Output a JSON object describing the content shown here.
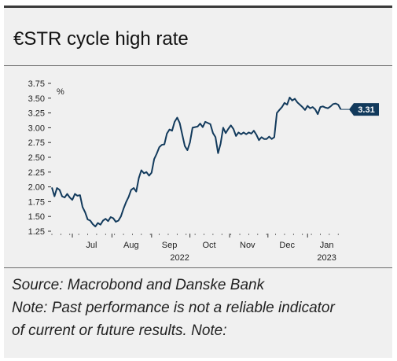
{
  "title": "€STR cycle high rate",
  "source": "Source: Macrobond and Danske Bank",
  "note_lines": [
    "Note: Past performance is not a reliable indicator",
    "of current or future results. Note:"
  ],
  "colors": {
    "line": "#123a5c",
    "label_bg": "#123a5c",
    "label_text": "#ffffff",
    "background": "#f0f0f0"
  },
  "chart_data": {
    "type": "line",
    "title": "",
    "ylabel": "%",
    "ylim": [
      1.25,
      3.75
    ],
    "yticks": [
      1.25,
      1.5,
      1.75,
      2.0,
      2.25,
      2.5,
      2.75,
      3.0,
      3.25,
      3.5,
      3.75
    ],
    "ytick_labels": [
      "1.25",
      "1.50",
      "1.75",
      "2.00",
      "2.25",
      "2.50",
      "2.75",
      "3.00",
      "3.25",
      "3.50",
      "3.75"
    ],
    "xlim": [
      "2022-06-15",
      "2023-01-31"
    ],
    "month_labels": [
      {
        "label": "Jul",
        "date": "2022-07-16"
      },
      {
        "label": "Aug",
        "date": "2022-08-16"
      },
      {
        "label": "Sep",
        "date": "2022-09-15"
      },
      {
        "label": "Oct",
        "date": "2022-10-16"
      },
      {
        "label": "Nov",
        "date": "2022-11-15"
      },
      {
        "label": "Dec",
        "date": "2022-12-16"
      },
      {
        "label": "Jan",
        "date": "2023-01-16"
      }
    ],
    "year_labels": [
      {
        "label": "2022",
        "date": "2022-09-23"
      },
      {
        "label": "2023",
        "date": "2023-01-16"
      }
    ],
    "grid": false,
    "legend": "none",
    "end_label": "3.31",
    "series": [
      {
        "values": [
          [
            "2022-06-15",
            1.99
          ],
          [
            "2022-06-17",
            1.84
          ],
          [
            "2022-06-19",
            1.98
          ],
          [
            "2022-06-21",
            1.95
          ],
          [
            "2022-06-23",
            1.84
          ],
          [
            "2022-06-25",
            1.82
          ],
          [
            "2022-06-27",
            1.88
          ],
          [
            "2022-06-29",
            1.82
          ],
          [
            "2022-07-01",
            1.78
          ],
          [
            "2022-07-03",
            1.88
          ],
          [
            "2022-07-05",
            1.85
          ],
          [
            "2022-07-07",
            1.86
          ],
          [
            "2022-07-09",
            1.66
          ],
          [
            "2022-07-11",
            1.57
          ],
          [
            "2022-07-13",
            1.45
          ],
          [
            "2022-07-15",
            1.43
          ],
          [
            "2022-07-17",
            1.37
          ],
          [
            "2022-07-19",
            1.33
          ],
          [
            "2022-07-21",
            1.39
          ],
          [
            "2022-07-23",
            1.36
          ],
          [
            "2022-07-25",
            1.43
          ],
          [
            "2022-07-27",
            1.46
          ],
          [
            "2022-07-29",
            1.42
          ],
          [
            "2022-07-31",
            1.49
          ],
          [
            "2022-08-02",
            1.47
          ],
          [
            "2022-08-04",
            1.41
          ],
          [
            "2022-08-06",
            1.43
          ],
          [
            "2022-08-08",
            1.5
          ],
          [
            "2022-08-10",
            1.63
          ],
          [
            "2022-08-12",
            1.74
          ],
          [
            "2022-08-14",
            1.83
          ],
          [
            "2022-08-16",
            1.95
          ],
          [
            "2022-08-18",
            1.98
          ],
          [
            "2022-08-20",
            1.92
          ],
          [
            "2022-08-22",
            2.15
          ],
          [
            "2022-08-24",
            2.28
          ],
          [
            "2022-08-26",
            2.23
          ],
          [
            "2022-08-28",
            2.25
          ],
          [
            "2022-08-30",
            2.19
          ],
          [
            "2022-09-01",
            2.24
          ],
          [
            "2022-09-03",
            2.47
          ],
          [
            "2022-09-05",
            2.56
          ],
          [
            "2022-09-07",
            2.67
          ],
          [
            "2022-09-09",
            2.71
          ],
          [
            "2022-09-11",
            2.72
          ],
          [
            "2022-09-13",
            2.9
          ],
          [
            "2022-09-15",
            2.97
          ],
          [
            "2022-09-17",
            2.95
          ],
          [
            "2022-09-19",
            3.1
          ],
          [
            "2022-09-21",
            3.17
          ],
          [
            "2022-09-23",
            3.08
          ],
          [
            "2022-09-25",
            2.88
          ],
          [
            "2022-09-27",
            2.69
          ],
          [
            "2022-09-29",
            2.62
          ],
          [
            "2022-10-01",
            2.75
          ],
          [
            "2022-10-03",
            3.0
          ],
          [
            "2022-10-05",
            3.01
          ],
          [
            "2022-10-07",
            3.02
          ],
          [
            "2022-10-09",
            3.07
          ],
          [
            "2022-10-11",
            3.01
          ],
          [
            "2022-10-13",
            3.1
          ],
          [
            "2022-10-15",
            3.08
          ],
          [
            "2022-10-17",
            3.06
          ],
          [
            "2022-10-19",
            2.91
          ],
          [
            "2022-10-21",
            2.84
          ],
          [
            "2022-10-23",
            2.57
          ],
          [
            "2022-10-25",
            2.73
          ],
          [
            "2022-10-27",
            3.0
          ],
          [
            "2022-10-29",
            2.91
          ],
          [
            "2022-10-31",
            2.98
          ],
          [
            "2022-11-02",
            3.04
          ],
          [
            "2022-11-04",
            2.98
          ],
          [
            "2022-11-06",
            2.86
          ],
          [
            "2022-11-08",
            2.92
          ],
          [
            "2022-11-10",
            2.89
          ],
          [
            "2022-11-12",
            2.92
          ],
          [
            "2022-11-14",
            2.89
          ],
          [
            "2022-11-16",
            2.92
          ],
          [
            "2022-11-18",
            2.9
          ],
          [
            "2022-11-20",
            2.95
          ],
          [
            "2022-11-22",
            2.88
          ],
          [
            "2022-11-24",
            2.79
          ],
          [
            "2022-11-26",
            2.84
          ],
          [
            "2022-11-28",
            2.81
          ],
          [
            "2022-11-30",
            2.81
          ],
          [
            "2022-12-02",
            2.85
          ],
          [
            "2022-12-04",
            2.81
          ],
          [
            "2022-12-06",
            2.84
          ],
          [
            "2022-12-08",
            3.25
          ],
          [
            "2022-12-10",
            3.3
          ],
          [
            "2022-12-12",
            3.35
          ],
          [
            "2022-12-14",
            3.42
          ],
          [
            "2022-12-16",
            3.39
          ],
          [
            "2022-12-18",
            3.51
          ],
          [
            "2022-12-20",
            3.46
          ],
          [
            "2022-12-22",
            3.49
          ],
          [
            "2022-12-24",
            3.43
          ],
          [
            "2022-12-26",
            3.39
          ],
          [
            "2022-12-28",
            3.35
          ],
          [
            "2022-12-30",
            3.3
          ],
          [
            "2023-01-01",
            3.37
          ],
          [
            "2023-01-03",
            3.33
          ],
          [
            "2023-01-05",
            3.35
          ],
          [
            "2023-01-07",
            3.31
          ],
          [
            "2023-01-09",
            3.23
          ],
          [
            "2023-01-11",
            3.35
          ],
          [
            "2023-01-13",
            3.36
          ],
          [
            "2023-01-15",
            3.34
          ],
          [
            "2023-01-17",
            3.33
          ],
          [
            "2023-01-19",
            3.36
          ],
          [
            "2023-01-21",
            3.4
          ],
          [
            "2023-01-23",
            3.41
          ],
          [
            "2023-01-25",
            3.39
          ],
          [
            "2023-01-27",
            3.31
          ]
        ]
      }
    ]
  }
}
